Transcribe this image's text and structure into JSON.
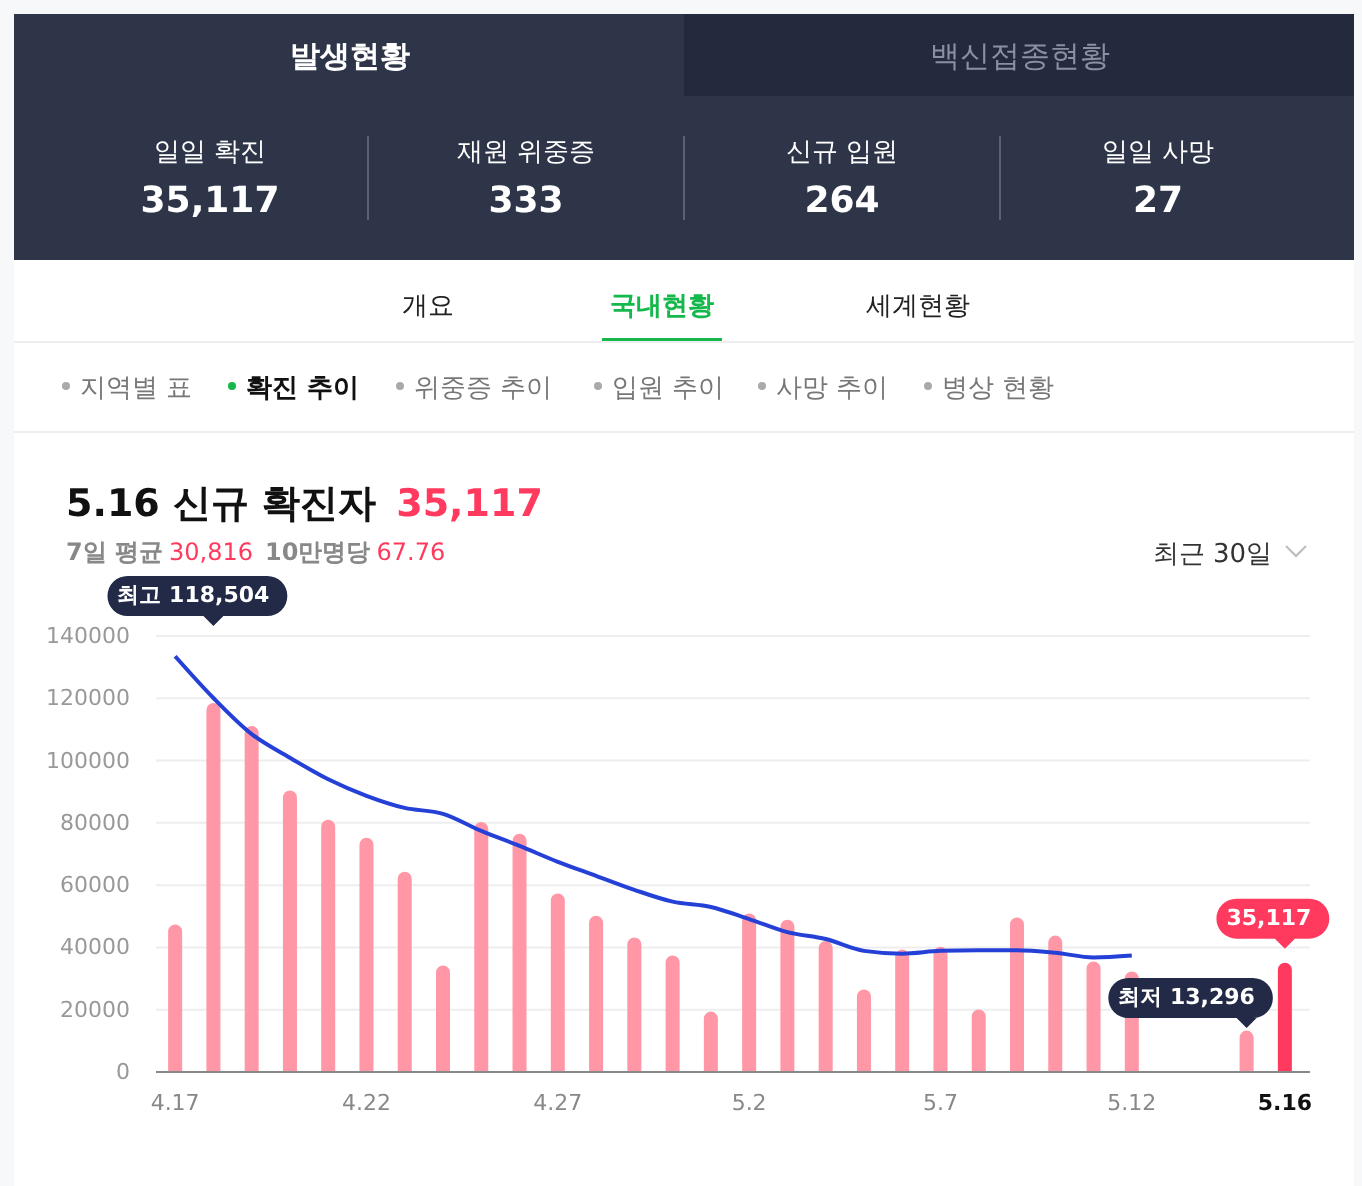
{
  "chart_data": {
    "type": "bar",
    "title": "5.16 신규 확진자",
    "categories": [
      "4.17",
      null,
      null,
      null,
      null,
      "4.22",
      null,
      null,
      null,
      null,
      "4.27",
      null,
      null,
      null,
      null,
      "5.2",
      null,
      null,
      null,
      null,
      "5.7",
      null,
      null,
      null,
      null,
      "5.12",
      null,
      null,
      null,
      "5.16"
    ],
    "series": [
      {
        "colors": [
          "#ff97a6",
          "#ff97a6",
          "#ff97a6",
          "#ff97a6",
          "#ff97a6",
          "#ff97a6",
          "#ff97a6",
          "#ff97a6",
          "#ff97a6",
          "#ff97a6",
          "#ff97a6",
          "#ff97a6",
          "#ff97a6",
          "#ff97a6",
          "#ff97a6",
          "#ff97a6",
          "#ff97a6",
          "#ff97a6",
          "#ff97a6",
          "#ff97a6",
          "#ff97a6",
          "#ff97a6",
          "#ff97a6",
          "#ff97a6",
          "#ff97a6",
          "#ff97a6",
          "#ff97a6",
          "#ff97a6",
          "#ff97a6",
          "#ff3a5e"
        ],
        "values": [
          47400,
          118504,
          111100,
          90400,
          81000,
          75200,
          64300,
          34200,
          80300,
          76500,
          57300,
          50200,
          43200,
          37400,
          19400,
          50900,
          48900,
          42100,
          26500,
          39300,
          40200,
          20100,
          49600,
          43800,
          35500,
          32300,
          null,
          null,
          13296,
          35117
        ]
      },
      {
        "type": "line",
        "color": "#2440d6",
        "values": [
          133500,
          120100,
          108500,
          100900,
          94000,
          88700,
          84800,
          82900,
          77400,
          72600,
          67500,
          63000,
          58500,
          54700,
          53000,
          49100,
          44900,
          42700,
          38900,
          38000,
          38900,
          39100,
          39100,
          38300,
          36800,
          37400,
          null,
          null,
          null,
          null
        ]
      }
    ],
    "ylim": [
      0,
      140000
    ],
    "yticks": [
      0,
      20000,
      40000,
      60000,
      80000,
      100000,
      120000,
      140000
    ],
    "grid": "y",
    "marker": "none",
    "line_style": "solid",
    "annotations": [
      "발생현황",
      "백신접종현황",
      "일일 확진",
      "35,117",
      "재원 위중증",
      "333",
      "신규 입원",
      "264",
      "일일 사망",
      "27",
      "개요",
      "국내현황",
      "세계현황",
      "지역별 표",
      "확진 추이",
      "위중증 추이",
      "입원 추이",
      "사망 추이",
      "병상 현황",
      "35,117",
      "7일 평균",
      "30,816",
      "10만명당",
      "67.76",
      "최근 30일",
      "최고 118,504",
      "최저 13,296",
      {
        "text": "35,117",
        "x": "5.16",
        "y": 35117
      }
    ]
  }
}
